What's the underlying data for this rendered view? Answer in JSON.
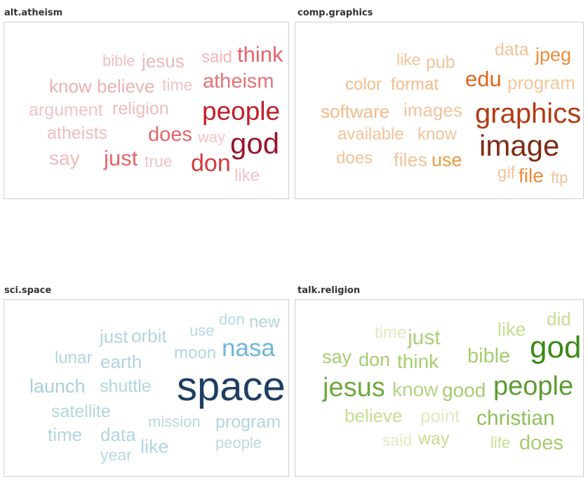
{
  "chart_data": [
    {
      "type": "wordcloud",
      "title": "alt.atheism",
      "words": [
        {
          "text": "bible",
          "weight": 0.18,
          "color": "#f1c0c0"
        },
        {
          "text": "jesus",
          "weight": 0.25,
          "color": "#eeb6b6"
        },
        {
          "text": "said",
          "weight": 0.22,
          "color": "#f0b8b8"
        },
        {
          "text": "think",
          "weight": 0.42,
          "color": "#e8636b"
        },
        {
          "text": "know",
          "weight": 0.27,
          "color": "#eab0b0"
        },
        {
          "text": "believe",
          "weight": 0.27,
          "color": "#ebb4b4"
        },
        {
          "text": "time",
          "weight": 0.22,
          "color": "#f1c4c4"
        },
        {
          "text": "atheism",
          "weight": 0.42,
          "color": "#e6737a"
        },
        {
          "text": "argument",
          "weight": 0.25,
          "color": "#f1c4c4"
        },
        {
          "text": "religion",
          "weight": 0.25,
          "color": "#eebcbc"
        },
        {
          "text": "people",
          "weight": 0.7,
          "color": "#c31d2a"
        },
        {
          "text": "atheists",
          "weight": 0.25,
          "color": "#efbcbc"
        },
        {
          "text": "does",
          "weight": 0.36,
          "color": "#e6646a"
        },
        {
          "text": "way",
          "weight": 0.2,
          "color": "#f3c6c6"
        },
        {
          "text": "god",
          "weight": 1.0,
          "color": "#99162e"
        },
        {
          "text": "say",
          "weight": 0.25,
          "color": "#efbcbc"
        },
        {
          "text": "just",
          "weight": 0.38,
          "color": "#e5656c"
        },
        {
          "text": "true",
          "weight": 0.2,
          "color": "#f1c4c4"
        },
        {
          "text": "don",
          "weight": 0.46,
          "color": "#d43a3c"
        },
        {
          "text": "like",
          "weight": 0.2,
          "color": "#f1c4c4"
        }
      ]
    },
    {
      "type": "wordcloud",
      "title": "comp.graphics",
      "words": [
        {
          "text": "like",
          "weight": 0.18,
          "color": "#f2c39a"
        },
        {
          "text": "pub",
          "weight": 0.2,
          "color": "#f2c39a"
        },
        {
          "text": "data",
          "weight": 0.22,
          "color": "#f4c296"
        },
        {
          "text": "jpeg",
          "weight": 0.33,
          "color": "#ed8c3a"
        },
        {
          "text": "color",
          "weight": 0.22,
          "color": "#f2bc8a"
        },
        {
          "text": "format",
          "weight": 0.22,
          "color": "#f2bc8a"
        },
        {
          "text": "edu",
          "weight": 0.4,
          "color": "#e0651a"
        },
        {
          "text": "program",
          "weight": 0.22,
          "color": "#f4c79a"
        },
        {
          "text": "software",
          "weight": 0.25,
          "color": "#f2bc8a"
        },
        {
          "text": "images",
          "weight": 0.25,
          "color": "#f2c39a"
        },
        {
          "text": "graphics",
          "weight": 0.7,
          "color": "#b33a13"
        },
        {
          "text": "available",
          "weight": 0.22,
          "color": "#f2c39a"
        },
        {
          "text": "know",
          "weight": 0.2,
          "color": "#f2c39a"
        },
        {
          "text": "image",
          "weight": 1.0,
          "color": "#7f2b15"
        },
        {
          "text": "does",
          "weight": 0.18,
          "color": "#f2c39a"
        },
        {
          "text": "files",
          "weight": 0.25,
          "color": "#f2c39a"
        },
        {
          "text": "use",
          "weight": 0.33,
          "color": "#ee9a45"
        },
        {
          "text": "gif",
          "weight": 0.22,
          "color": "#f2c39a"
        },
        {
          "text": "file",
          "weight": 0.33,
          "color": "#ee8a35"
        },
        {
          "text": "ftp",
          "weight": 0.2,
          "color": "#f2c39a"
        }
      ]
    },
    {
      "type": "wordcloud",
      "title": "sci.space",
      "words": [
        {
          "text": "don",
          "weight": 0.18,
          "color": "#b9d8e2"
        },
        {
          "text": "new",
          "weight": 0.2,
          "color": "#b3d5e0"
        },
        {
          "text": "just",
          "weight": 0.22,
          "color": "#b3d5e0"
        },
        {
          "text": "orbit",
          "weight": 0.25,
          "color": "#b3d5e0"
        },
        {
          "text": "use",
          "weight": 0.18,
          "color": "#b9d8e2"
        },
        {
          "text": "lunar",
          "weight": 0.22,
          "color": "#b3d5e0"
        },
        {
          "text": "moon",
          "weight": 0.22,
          "color": "#b3d5e0"
        },
        {
          "text": "nasa",
          "weight": 0.5,
          "color": "#6fb5d9"
        },
        {
          "text": "earth",
          "weight": 0.25,
          "color": "#b3d5e0"
        },
        {
          "text": "launch",
          "weight": 0.25,
          "color": "#a9cfdc"
        },
        {
          "text": "shuttle",
          "weight": 0.25,
          "color": "#b3d5e0"
        },
        {
          "text": "space",
          "weight": 1.0,
          "color": "#1f3e63"
        },
        {
          "text": "satellite",
          "weight": 0.25,
          "color": "#b3d5e0"
        },
        {
          "text": "time",
          "weight": 0.25,
          "color": "#b3d5e0"
        },
        {
          "text": "data",
          "weight": 0.25,
          "color": "#b3d5e0"
        },
        {
          "text": "mission",
          "weight": 0.2,
          "color": "#b9d8e2"
        },
        {
          "text": "program",
          "weight": 0.22,
          "color": "#b3d5e0"
        },
        {
          "text": "like",
          "weight": 0.22,
          "color": "#b3d5e0"
        },
        {
          "text": "people",
          "weight": 0.18,
          "color": "#b9d8e2"
        },
        {
          "text": "year",
          "weight": 0.18,
          "color": "#b9d8e2"
        }
      ]
    },
    {
      "type": "wordcloud",
      "title": "talk.religion",
      "words": [
        {
          "text": "did",
          "weight": 0.2,
          "color": "#c5de8e"
        },
        {
          "text": "time",
          "weight": 0.18,
          "color": "#dcecbe"
        },
        {
          "text": "just",
          "weight": 0.25,
          "color": "#a9d079"
        },
        {
          "text": "like",
          "weight": 0.22,
          "color": "#c5de8e"
        },
        {
          "text": "god",
          "weight": 0.6,
          "color": "#3b8a16"
        },
        {
          "text": "say",
          "weight": 0.25,
          "color": "#a5cd6e"
        },
        {
          "text": "don",
          "weight": 0.25,
          "color": "#a5cd6e"
        },
        {
          "text": "think",
          "weight": 0.25,
          "color": "#a5cd6e"
        },
        {
          "text": "bible",
          "weight": 0.25,
          "color": "#a5cd6e"
        },
        {
          "text": "jesus",
          "weight": 0.5,
          "color": "#6fa83d"
        },
        {
          "text": "know",
          "weight": 0.25,
          "color": "#b0d482"
        },
        {
          "text": "good",
          "weight": 0.25,
          "color": "#a5cd6e"
        },
        {
          "text": "people",
          "weight": 0.5,
          "color": "#5c9b32"
        },
        {
          "text": "believe",
          "weight": 0.22,
          "color": "#c5de8e"
        },
        {
          "text": "point",
          "weight": 0.2,
          "color": "#dcecbe"
        },
        {
          "text": "christian",
          "weight": 0.3,
          "color": "#8ec05a"
        },
        {
          "text": "said",
          "weight": 0.18,
          "color": "#dcecbe"
        },
        {
          "text": "way",
          "weight": 0.22,
          "color": "#c5de8e"
        },
        {
          "text": "life",
          "weight": 0.18,
          "color": "#c5de8e"
        },
        {
          "text": "does",
          "weight": 0.25,
          "color": "#a5cd6e"
        }
      ]
    }
  ]
}
